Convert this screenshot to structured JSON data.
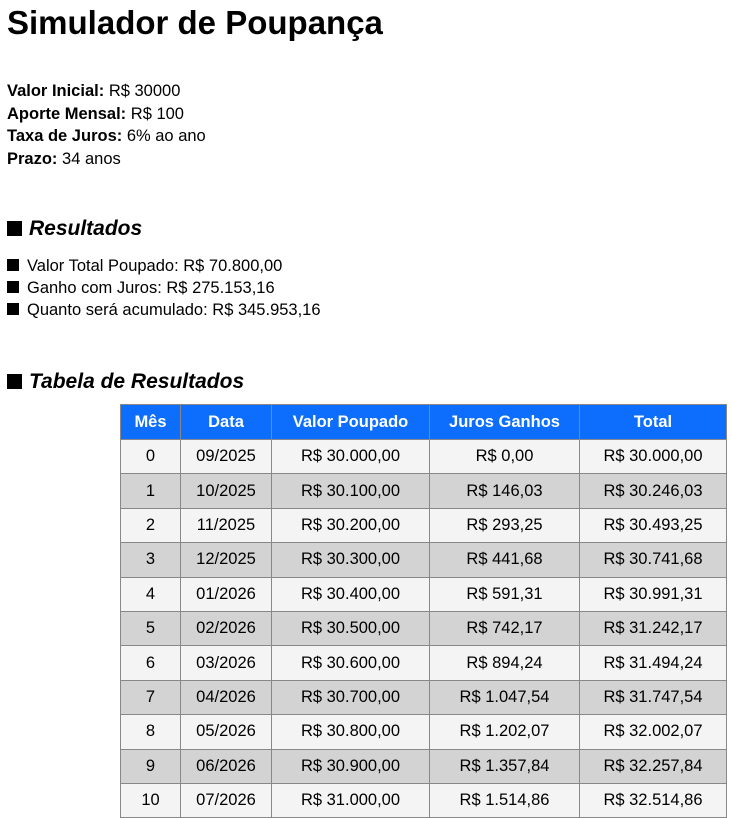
{
  "title": "Simulador de Poupança",
  "inputs": [
    {
      "label": "Valor Inicial:",
      "value": "R$ 30000"
    },
    {
      "label": "Aporte Mensal:",
      "value": "R$ 100"
    },
    {
      "label": "Taxa de Juros:",
      "value": "6% ao ano"
    },
    {
      "label": "Prazo:",
      "value": "34 anos"
    }
  ],
  "results": {
    "heading": "Resultados",
    "items": [
      "Valor Total Poupado: R$ 70.800,00",
      "Ganho com Juros: R$ 275.153,16",
      "Quanto será acumulado: R$ 345.953,16"
    ]
  },
  "table": {
    "heading": "Tabela de Resultados",
    "header_color": "#0d6efd",
    "columns": [
      "Mês",
      "Data",
      "Valor Poupado",
      "Juros Ganhos",
      "Total"
    ],
    "rows": [
      [
        "0",
        "09/2025",
        "R$ 30.000,00",
        "R$ 0,00",
        "R$ 30.000,00"
      ],
      [
        "1",
        "10/2025",
        "R$ 30.100,00",
        "R$ 146,03",
        "R$ 30.246,03"
      ],
      [
        "2",
        "11/2025",
        "R$ 30.200,00",
        "R$ 293,25",
        "R$ 30.493,25"
      ],
      [
        "3",
        "12/2025",
        "R$ 30.300,00",
        "R$ 441,68",
        "R$ 30.741,68"
      ],
      [
        "4",
        "01/2026",
        "R$ 30.400,00",
        "R$ 591,31",
        "R$ 30.991,31"
      ],
      [
        "5",
        "02/2026",
        "R$ 30.500,00",
        "R$ 742,17",
        "R$ 31.242,17"
      ],
      [
        "6",
        "03/2026",
        "R$ 30.600,00",
        "R$ 894,24",
        "R$ 31.494,24"
      ],
      [
        "7",
        "04/2026",
        "R$ 30.700,00",
        "R$ 1.047,54",
        "R$ 31.747,54"
      ],
      [
        "8",
        "05/2026",
        "R$ 30.800,00",
        "R$ 1.202,07",
        "R$ 32.002,07"
      ],
      [
        "9",
        "06/2026",
        "R$ 30.900,00",
        "R$ 1.357,84",
        "R$ 32.257,84"
      ],
      [
        "10",
        "07/2026",
        "R$ 31.000,00",
        "R$ 1.514,86",
        "R$ 32.514,86"
      ]
    ]
  }
}
